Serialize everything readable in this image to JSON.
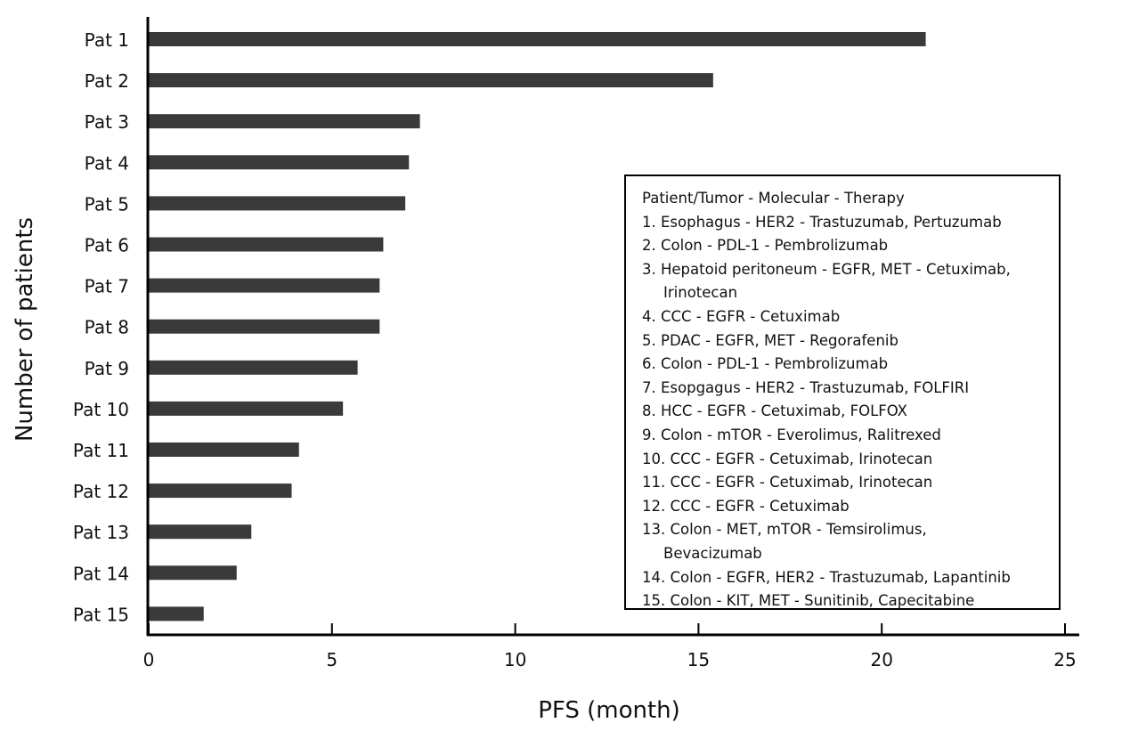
{
  "chart_data": {
    "type": "bar",
    "orientation": "horizontal",
    "xlabel": "PFS (month)",
    "ylabel": "Number of patients",
    "xlim": [
      0,
      25
    ],
    "xticks": [
      "0",
      "5",
      "10",
      "15",
      "20",
      "25"
    ],
    "categories": [
      "Pat 1",
      "Pat 2",
      "Pat 3",
      "Pat 4",
      "Pat 5",
      "Pat 6",
      "Pat 7",
      "Pat 8",
      "Pat 9",
      "Pat 10",
      "Pat 11",
      "Pat 12",
      "Pat 13",
      "Pat 14",
      "Pat 15"
    ],
    "values": [
      21.2,
      15.4,
      7.4,
      7.1,
      7.0,
      6.4,
      6.3,
      6.3,
      5.7,
      5.3,
      4.1,
      3.9,
      2.8,
      2.4,
      1.5
    ],
    "bar_color": "#3a3a3a",
    "grid": false,
    "legend_text": [
      {
        "text": "Patient/Tumor - Molecular - Therapy",
        "indent": false
      },
      {
        "text": "1. Esophagus - HER2 - Trastuzumab, Pertuzumab",
        "indent": false
      },
      {
        "text": "2. Colon - PDL-1 - Pembrolizumab",
        "indent": false
      },
      {
        "text": "3. Hepatoid peritoneum - EGFR, MET - Cetuximab,",
        "indent": false
      },
      {
        "text": "Irinotecan",
        "indent": true
      },
      {
        "text": "4. CCC - EGFR - Cetuximab",
        "indent": false
      },
      {
        "text": "5. PDAC - EGFR, MET - Regorafenib",
        "indent": false
      },
      {
        "text": "6. Colon - PDL-1 - Pembrolizumab",
        "indent": false
      },
      {
        "text": "7. Esopgagus - HER2 - Trastuzumab, FOLFIRI",
        "indent": false
      },
      {
        "text": "8. HCC - EGFR - Cetuximab, FOLFOX",
        "indent": false
      },
      {
        "text": "9. Colon - mTOR - Everolimus, Ralitrexed",
        "indent": false
      },
      {
        "text": "10. CCC - EGFR - Cetuximab, Irinotecan",
        "indent": false
      },
      {
        "text": "11. CCC - EGFR - Cetuximab, Irinotecan",
        "indent": false
      },
      {
        "text": "12. CCC - EGFR - Cetuximab",
        "indent": false
      },
      {
        "text": "13. Colon - MET, mTOR - Temsirolimus,",
        "indent": false
      },
      {
        "text": "Bevacizumab",
        "indent": true
      },
      {
        "text": "14. Colon - EGFR, HER2 - Trastuzumab, Lapantinib",
        "indent": false
      },
      {
        "text": "15. Colon - KIT, MET - Sunitinib, Capecitabine",
        "indent": false
      }
    ]
  }
}
